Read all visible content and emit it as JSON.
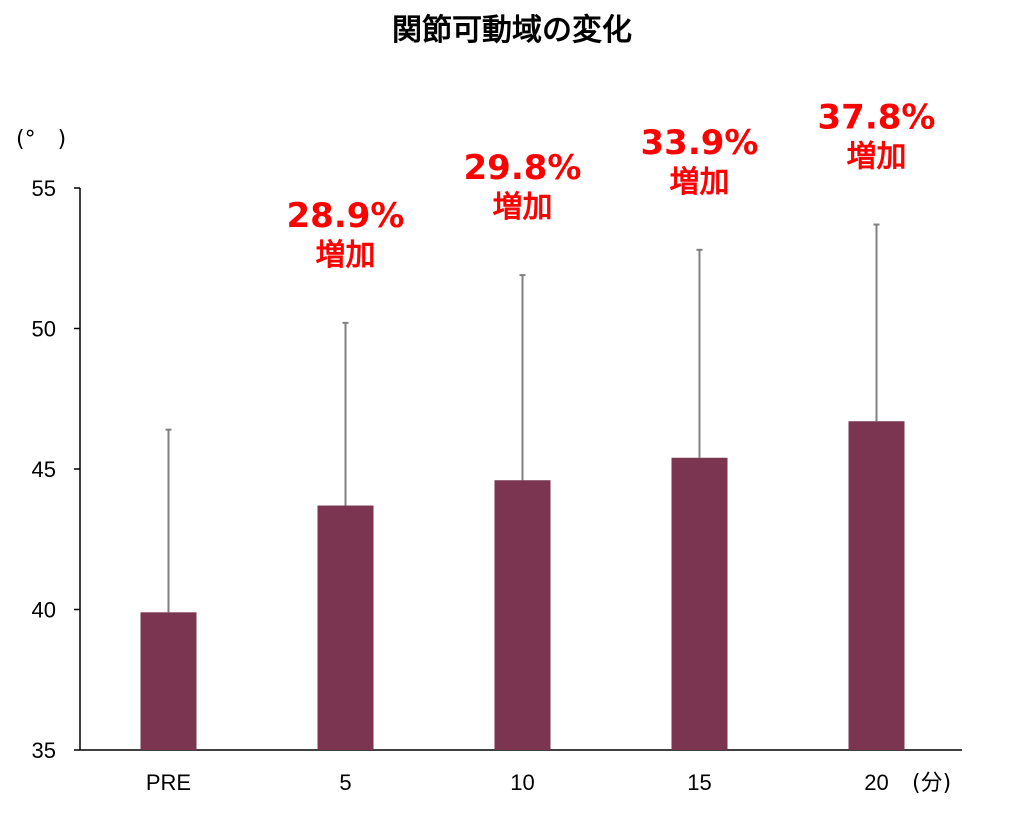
{
  "chart_data": {
    "type": "bar",
    "title": "関節可動域の変化",
    "ylabel": "(°　)",
    "xlabel": "(分)",
    "ylim": [
      35,
      55
    ],
    "yticks": [
      "35",
      "40",
      "45",
      "50",
      "55"
    ],
    "categories": [
      "PRE",
      "5",
      "10",
      "15",
      "20"
    ],
    "values": [
      39.9,
      43.7,
      44.6,
      45.4,
      46.7
    ],
    "error_upper": [
      46.4,
      50.2,
      51.9,
      52.8,
      53.7
    ],
    "bar_color": "#7b3550",
    "error_color": "#808080",
    "annotation_color": "#ff0000",
    "annotations": [
      {
        "category": "PRE",
        "pct": "",
        "text": ""
      },
      {
        "category": "5",
        "pct": "28.9%",
        "text": "増加"
      },
      {
        "category": "10",
        "pct": "29.8%",
        "text": "増加"
      },
      {
        "category": "15",
        "pct": "33.9%",
        "text": "増加"
      },
      {
        "category": "20",
        "pct": "37.8%",
        "text": "増加"
      }
    ],
    "grid": false,
    "legend": "none"
  }
}
